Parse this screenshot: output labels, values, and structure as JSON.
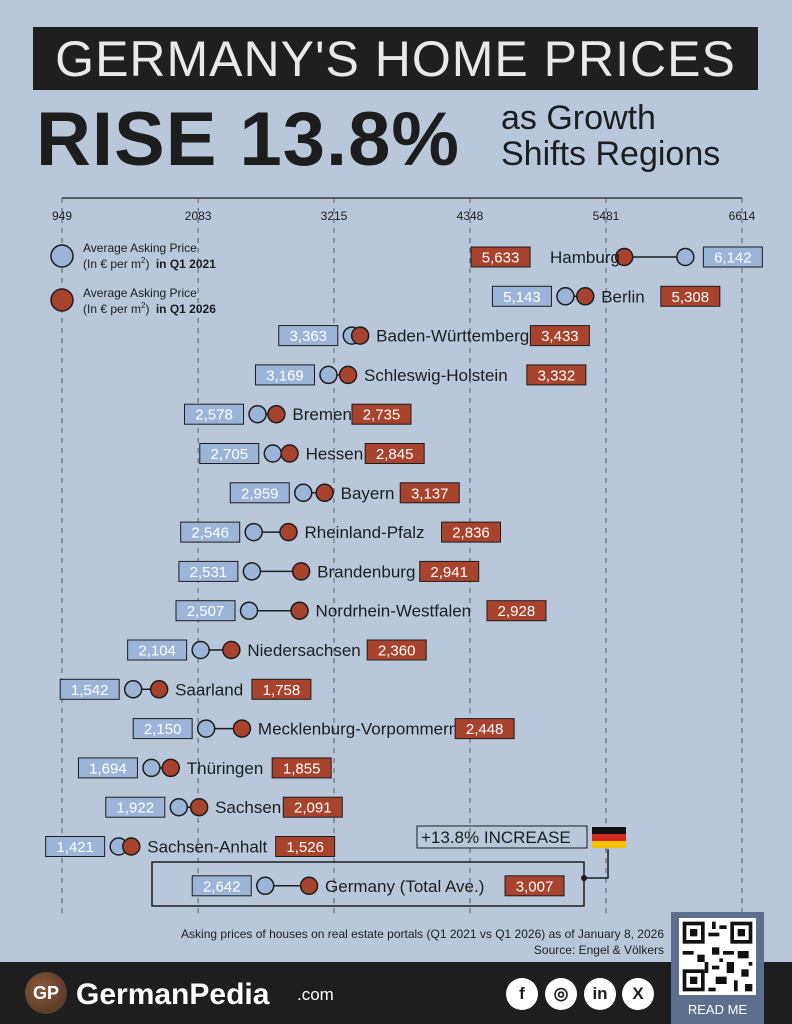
{
  "header": {
    "title": "GERMANY'S HOME PRICES",
    "headline": "RISE 13.8%",
    "subhead_line1": "as Growth",
    "subhead_line2": "Shifts Regions"
  },
  "legend": {
    "q2021_line1": "Average Asking Price",
    "q2021_line2_prefix": "(In € per m",
    "q2021_line2_period": "in Q1 2021",
    "q2026_line1": "Average Asking Price",
    "q2026_line2_prefix": "(In € per m",
    "q2026_line2_period": "in Q1 2026",
    "superscript": "2",
    "paren_close": ")"
  },
  "chart_data": {
    "type": "dumbbell",
    "title": "GERMANY'S HOME PRICES RISE 13.8% as Growth Shifts Regions",
    "x_ticks": [
      949,
      2083,
      3215,
      4348,
      5481,
      6614
    ],
    "xlim": [
      949,
      6614
    ],
    "series": [
      {
        "name": "Average Asking Price (In € per m2) in Q1 2021",
        "color": "#9bb5d8"
      },
      {
        "name": "Average Asking Price (In € per m2) in Q1 2026",
        "color": "#a8432d"
      }
    ],
    "rows": [
      {
        "region": "Hamburg",
        "q2021": 6142,
        "q2026": 5633
      },
      {
        "region": "Berlin",
        "q2021": 5143,
        "q2026": 5308
      },
      {
        "region": "Baden-Württemberg",
        "q2021": 3363,
        "q2026": 3433
      },
      {
        "region": "Schleswig-Holstein",
        "q2021": 3169,
        "q2026": 3332
      },
      {
        "region": "Bremen",
        "q2021": 2578,
        "q2026": 2735
      },
      {
        "region": "Hessen",
        "q2021": 2705,
        "q2026": 2845
      },
      {
        "region": "Bayern",
        "q2021": 2959,
        "q2026": 3137
      },
      {
        "region": "Rheinland-Pfalz",
        "q2021": 2546,
        "q2026": 2836
      },
      {
        "region": "Brandenburg",
        "q2021": 2531,
        "q2026": 2941
      },
      {
        "region": "Nordrhein-Westfalen",
        "q2021": 2507,
        "q2026": 2928
      },
      {
        "region": "Niedersachsen",
        "q2021": 2104,
        "q2026": 2360
      },
      {
        "region": "Saarland",
        "q2021": 1542,
        "q2026": 1758
      },
      {
        "region": "Mecklenburg-Vorpommern",
        "q2021": 2150,
        "q2026": 2448
      },
      {
        "region": "Thüringen",
        "q2021": 1694,
        "q2026": 1855
      },
      {
        "region": "Sachsen",
        "q2021": 1922,
        "q2026": 2091
      },
      {
        "region": "Sachsen-Anhalt",
        "q2021": 1421,
        "q2026": 1526
      },
      {
        "region": "Germany (Total Ave.)",
        "q2021": 2642,
        "q2026": 3007
      }
    ],
    "annotation": "+13.8% INCREASE"
  },
  "colors": {
    "q2021": "#9bb5d8",
    "q2026": "#a8432d",
    "background": "#b8c8da",
    "dark": "#1e1e1e"
  },
  "footnote": {
    "line1": "Asking prices of houses on real estate portals (Q1 2021 vs Q1 2026) as of January 8, 2026",
    "line2": "Source: Engel & Völkers"
  },
  "footer": {
    "logo_initials": "GP",
    "brand": "GermanPedia",
    "brand_suffix": ".com",
    "social": [
      {
        "icon": "facebook-icon",
        "glyph": "f"
      },
      {
        "icon": "instagram-icon",
        "glyph": "◎"
      },
      {
        "icon": "linkedin-icon",
        "glyph": "in"
      },
      {
        "icon": "x-icon",
        "glyph": "X"
      }
    ],
    "qr_label": "READ ME"
  }
}
